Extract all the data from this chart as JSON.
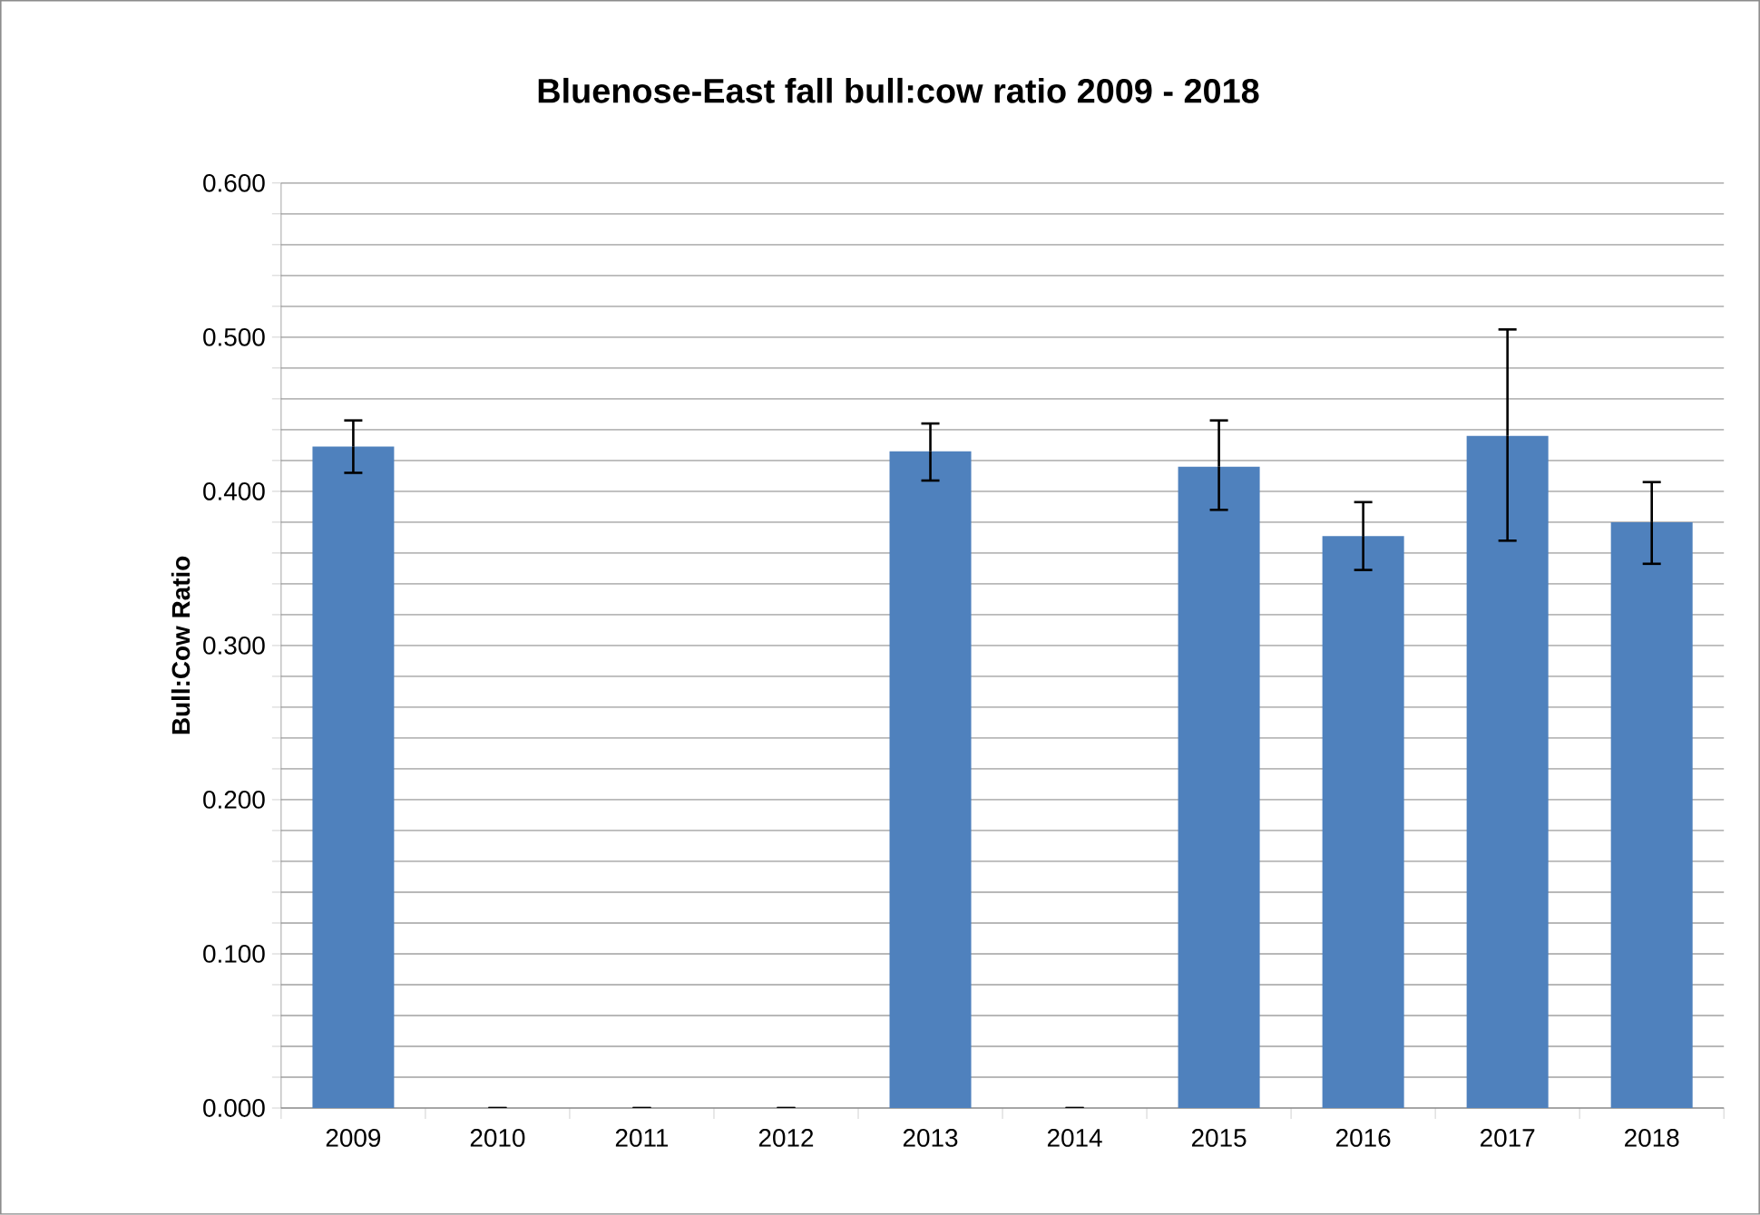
{
  "chart_data": {
    "type": "bar",
    "title": "Bluenose-East fall bull:cow ratio 2009 - 2018",
    "ylabel": "Bull:Cow Ratio",
    "categories": [
      "2009",
      "2010",
      "2011",
      "2012",
      "2013",
      "2014",
      "2015",
      "2016",
      "2017",
      "2018"
    ],
    "values": [
      0.429,
      0,
      0,
      0,
      0.426,
      0,
      0.416,
      0.371,
      0.436,
      0.38
    ],
    "errors": [
      [
        0.412,
        0.446
      ],
      null,
      null,
      null,
      [
        0.407,
        0.444
      ],
      null,
      [
        0.388,
        0.446
      ],
      [
        0.349,
        0.393
      ],
      [
        0.368,
        0.505
      ],
      [
        0.353,
        0.406
      ]
    ],
    "color": "#4f81bd",
    "ylim": [
      0,
      0.6
    ],
    "yticks": [
      {
        "value": 0,
        "label": "0.000"
      },
      {
        "value": 0.02,
        "label": null
      },
      {
        "value": 0.04,
        "label": null
      },
      {
        "value": 0.06,
        "label": null
      },
      {
        "value": 0.08,
        "label": null
      },
      {
        "value": 0.1,
        "label": "0.100"
      },
      {
        "value": 0.12,
        "label": null
      },
      {
        "value": 0.14,
        "label": null
      },
      {
        "value": 0.16,
        "label": null
      },
      {
        "value": 0.18,
        "label": null
      },
      {
        "value": 0.2,
        "label": "0.200"
      },
      {
        "value": 0.22,
        "label": null
      },
      {
        "value": 0.24,
        "label": null
      },
      {
        "value": 0.26,
        "label": null
      },
      {
        "value": 0.28,
        "label": null
      },
      {
        "value": 0.3,
        "label": "0.300"
      },
      {
        "value": 0.32,
        "label": null
      },
      {
        "value": 0.34,
        "label": null
      },
      {
        "value": 0.36,
        "label": null
      },
      {
        "value": 0.38,
        "label": null
      },
      {
        "value": 0.4,
        "label": "0.400"
      },
      {
        "value": 0.42,
        "label": null
      },
      {
        "value": 0.44,
        "label": null
      },
      {
        "value": 0.46,
        "label": null
      },
      {
        "value": 0.48,
        "label": null
      },
      {
        "value": 0.5,
        "label": "0.500"
      },
      {
        "value": 0.52,
        "label": null
      },
      {
        "value": 0.54,
        "label": null
      },
      {
        "value": 0.56,
        "label": null
      },
      {
        "value": 0.58,
        "label": null
      },
      {
        "value": 0.6,
        "label": "0.600"
      }
    ],
    "grid": "y"
  }
}
